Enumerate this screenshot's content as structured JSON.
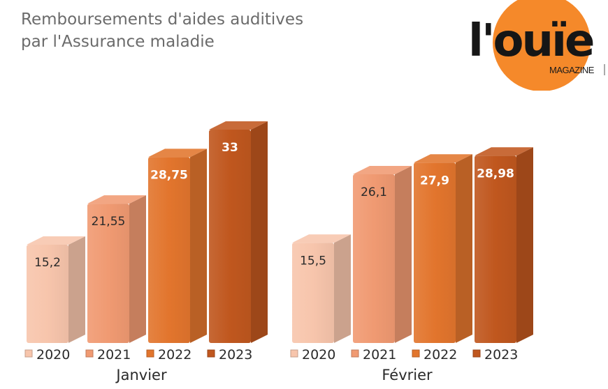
{
  "title_line1": "Remboursements d'aides auditives",
  "title_line2": "par l'Assurance maladie",
  "logo": {
    "brand": "l'ouïe",
    "sub": "MAGAZINE",
    "accent": "#f5892a"
  },
  "chart_data": {
    "type": "bar",
    "title": "Remboursements d'aides auditives par l'Assurance maladie",
    "groups": [
      "Janvier",
      "Février"
    ],
    "legend_labels": [
      "2020",
      "2021",
      "2022",
      "2023"
    ],
    "series": [
      {
        "name": "2020",
        "color": "#f7c5ac",
        "values": [
          15.2,
          15.5
        ],
        "labels": [
          "15,2",
          "15,5"
        ]
      },
      {
        "name": "2021",
        "color": "#f09a72",
        "values": [
          21.55,
          26.1
        ],
        "labels": [
          "21,55",
          "26,1"
        ]
      },
      {
        "name": "2022",
        "color": "#e2752d",
        "values": [
          28.75,
          27.9
        ],
        "labels": [
          "28,75",
          "27,9"
        ]
      },
      {
        "name": "2023",
        "color": "#c0571e",
        "values": [
          33,
          28.98
        ],
        "labels": [
          "33",
          "28,98"
        ]
      }
    ],
    "ylim": [
      0,
      33
    ],
    "grid": false,
    "legend": "below each group"
  }
}
